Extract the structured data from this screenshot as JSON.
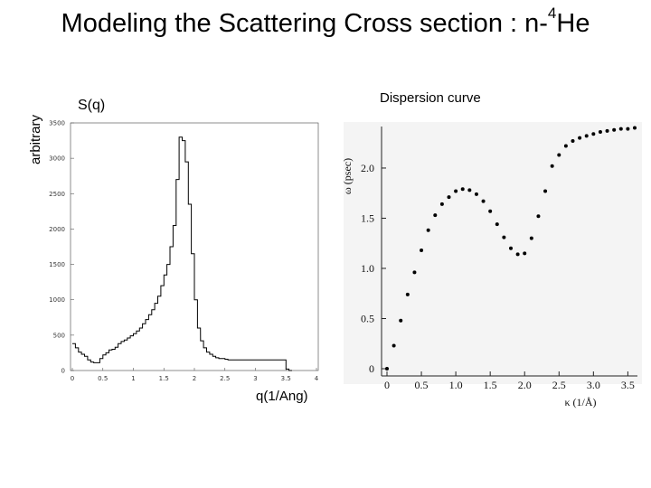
{
  "title": {
    "main": "Modeling the Scattering Cross section : n-",
    "sup": "4",
    "tail": "He"
  },
  "left_panel": {
    "ylabel": "arbitrary",
    "series_label": "S(q)",
    "xlabel": "q(1/Ang)"
  },
  "right_panel": {
    "title": "Dispersion curve",
    "ylabel": "ω (psec)",
    "xlabel": "κ (1/Å)"
  },
  "chart_data": [
    {
      "type": "line",
      "title": "S(q)",
      "xlabel": "q(1/Ang)",
      "ylabel": "arbitrary",
      "xlim": [
        0,
        4
      ],
      "ylim": [
        0,
        3500
      ],
      "x_ticks": [
        "0",
        "0.5",
        "1",
        "1.5",
        "2",
        "2.5",
        "3",
        "3.5",
        "4"
      ],
      "y_ticks": [
        "0",
        "500",
        "1000",
        "1500",
        "2000",
        "2500",
        "3000",
        "3500"
      ],
      "x": [
        0.0,
        0.05,
        0.1,
        0.15,
        0.2,
        0.25,
        0.3,
        0.35,
        0.4,
        0.45,
        0.5,
        0.55,
        0.6,
        0.65,
        0.7,
        0.75,
        0.8,
        0.85,
        0.9,
        0.95,
        1.0,
        1.05,
        1.1,
        1.15,
        1.2,
        1.25,
        1.3,
        1.35,
        1.4,
        1.45,
        1.5,
        1.55,
        1.6,
        1.65,
        1.7,
        1.75,
        1.8,
        1.85,
        1.9,
        1.95,
        2.0,
        2.05,
        2.1,
        2.15,
        2.2,
        2.25,
        2.3,
        2.35,
        2.4,
        2.45,
        2.5,
        2.55,
        2.6,
        2.65,
        2.7,
        2.75,
        2.8,
        2.85,
        2.9,
        2.95,
        3.0,
        3.05,
        3.1,
        3.15,
        3.2,
        3.25,
        3.3,
        3.35,
        3.4,
        3.45,
        3.5,
        3.55
      ],
      "y": [
        380,
        320,
        260,
        230,
        200,
        150,
        120,
        110,
        110,
        170,
        220,
        250,
        290,
        300,
        330,
        380,
        410,
        430,
        460,
        490,
        520,
        560,
        600,
        660,
        720,
        790,
        860,
        950,
        1050,
        1200,
        1350,
        1500,
        1750,
        2050,
        2700,
        3300,
        3250,
        2950,
        2350,
        1650,
        1000,
        600,
        420,
        320,
        260,
        230,
        200,
        180,
        170,
        170,
        160,
        150,
        150,
        150,
        150,
        150,
        150,
        150,
        150,
        150,
        150,
        150,
        150,
        150,
        150,
        150,
        150,
        150,
        150,
        150,
        20,
        0
      ]
    },
    {
      "type": "scatter",
      "title": "Dispersion curve",
      "xlabel": "κ (1/Å)",
      "ylabel": "ω (psec)",
      "xlim": [
        0,
        3.6
      ],
      "ylim": [
        0,
        2.45
      ],
      "x_ticks": [
        "0",
        "0.5",
        "1.0",
        "1.5",
        "2.0",
        "2.5",
        "3.0",
        "3.5"
      ],
      "y_ticks": [
        "0",
        "0.5",
        "1.0",
        "1.5",
        "2.0"
      ],
      "x": [
        0.0,
        0.1,
        0.2,
        0.3,
        0.4,
        0.5,
        0.6,
        0.7,
        0.8,
        0.9,
        1.0,
        1.1,
        1.2,
        1.3,
        1.4,
        1.5,
        1.6,
        1.7,
        1.8,
        1.9,
        2.0,
        2.1,
        2.2,
        2.3,
        2.4,
        2.5,
        2.6,
        2.7,
        2.8,
        2.9,
        3.0,
        3.1,
        3.2,
        3.3,
        3.4,
        3.5,
        3.6
      ],
      "y": [
        0.0,
        0.23,
        0.48,
        0.74,
        0.96,
        1.18,
        1.38,
        1.53,
        1.64,
        1.71,
        1.77,
        1.79,
        1.78,
        1.74,
        1.67,
        1.57,
        1.44,
        1.31,
        1.2,
        1.14,
        1.15,
        1.3,
        1.52,
        1.77,
        2.02,
        2.13,
        2.22,
        2.27,
        2.3,
        2.32,
        2.34,
        2.36,
        2.37,
        2.38,
        2.39,
        2.39,
        2.4
      ]
    }
  ]
}
